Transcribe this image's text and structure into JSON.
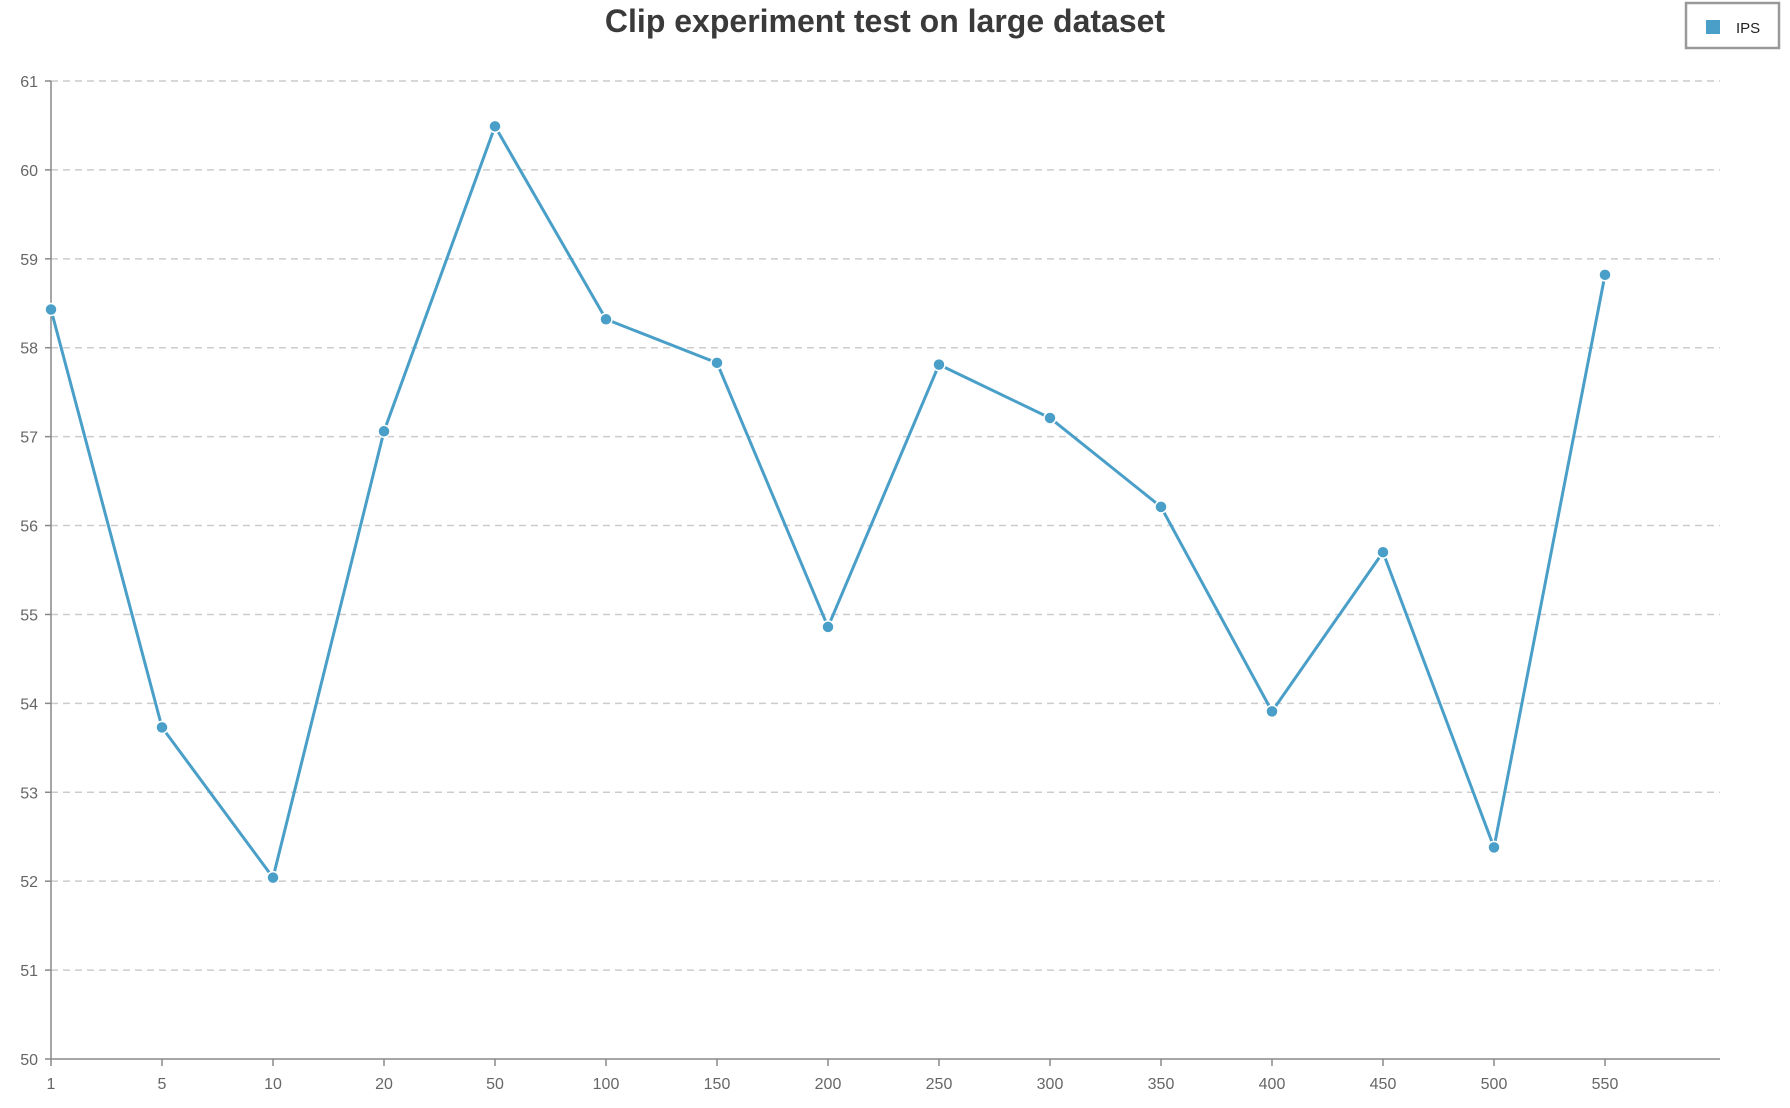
{
  "chart_data": {
    "type": "line",
    "title": "Clip experiment test on large dataset",
    "xlabel": "",
    "ylabel": "",
    "categories": [
      "1",
      "5",
      "10",
      "20",
      "50",
      "100",
      "150",
      "200",
      "250",
      "300",
      "350",
      "400",
      "450",
      "500",
      "550"
    ],
    "series": [
      {
        "name": "IPS",
        "color": "#4a9fc8",
        "values": [
          58.43,
          53.73,
          52.04,
          57.06,
          60.49,
          58.32,
          57.83,
          54.86,
          57.81,
          57.21,
          56.21,
          53.91,
          55.7,
          52.38,
          58.82
        ]
      }
    ],
    "ylim": [
      50,
      61
    ],
    "yticks": [
      "50",
      "51",
      "52",
      "53",
      "54",
      "55",
      "56",
      "57",
      "58",
      "59",
      "60",
      "61"
    ],
    "grid": true,
    "legend_position": "top-right"
  }
}
